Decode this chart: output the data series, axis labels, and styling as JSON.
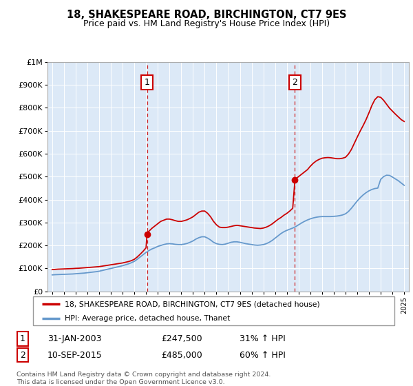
{
  "title": "18, SHAKESPEARE ROAD, BIRCHINGTON, CT7 9ES",
  "subtitle": "Price paid vs. HM Land Registry's House Price Index (HPI)",
  "plot_bg_color": "#dce9f7",
  "ylim": [
    0,
    1000000
  ],
  "yticks": [
    0,
    100000,
    200000,
    300000,
    400000,
    500000,
    600000,
    700000,
    800000,
    900000,
    1000000
  ],
  "ytick_labels": [
    "£0",
    "£100K",
    "£200K",
    "£300K",
    "£400K",
    "£500K",
    "£600K",
    "£700K",
    "£800K",
    "£900K",
    "£1M"
  ],
  "red_line_color": "#cc0000",
  "blue_line_color": "#6699cc",
  "marker1_year": 2003.08,
  "marker1_value": 247500,
  "marker2_year": 2015.69,
  "marker2_value": 485000,
  "legend_line1": "18, SHAKESPEARE ROAD, BIRCHINGTON, CT7 9ES (detached house)",
  "legend_line2": "HPI: Average price, detached house, Thanet",
  "table_row1": [
    "1",
    "31-JAN-2003",
    "£247,500",
    "31% ↑ HPI"
  ],
  "table_row2": [
    "2",
    "10-SEP-2015",
    "£485,000",
    "60% ↑ HPI"
  ],
  "footnote1": "Contains HM Land Registry data © Crown copyright and database right 2024.",
  "footnote2": "This data is licensed under the Open Government Licence v3.0.",
  "red_hpi_data": [
    [
      1995.0,
      95000
    ],
    [
      1995.25,
      96000
    ],
    [
      1995.5,
      97000
    ],
    [
      1995.75,
      97500
    ],
    [
      1996.0,
      98000
    ],
    [
      1996.25,
      98500
    ],
    [
      1996.5,
      99000
    ],
    [
      1996.75,
      99500
    ],
    [
      1997.0,
      100500
    ],
    [
      1997.25,
      101000
    ],
    [
      1997.5,
      102000
    ],
    [
      1997.75,
      103000
    ],
    [
      1998.0,
      104000
    ],
    [
      1998.25,
      105000
    ],
    [
      1998.5,
      106000
    ],
    [
      1998.75,
      107000
    ],
    [
      1999.0,
      108000
    ],
    [
      1999.25,
      110000
    ],
    [
      1999.5,
      112000
    ],
    [
      1999.75,
      114000
    ],
    [
      2000.0,
      116000
    ],
    [
      2000.25,
      118000
    ],
    [
      2000.5,
      120000
    ],
    [
      2000.75,
      122000
    ],
    [
      2001.0,
      124000
    ],
    [
      2001.25,
      127000
    ],
    [
      2001.5,
      130000
    ],
    [
      2001.75,
      134000
    ],
    [
      2002.0,
      140000
    ],
    [
      2002.25,
      150000
    ],
    [
      2002.5,
      162000
    ],
    [
      2002.75,
      175000
    ],
    [
      2003.0,
      190000
    ],
    [
      2003.08,
      247500
    ],
    [
      2003.2,
      260000
    ],
    [
      2003.5,
      275000
    ],
    [
      2003.75,
      285000
    ],
    [
      2004.0,
      295000
    ],
    [
      2004.25,
      305000
    ],
    [
      2004.5,
      310000
    ],
    [
      2004.75,
      315000
    ],
    [
      2005.0,
      315000
    ],
    [
      2005.25,
      312000
    ],
    [
      2005.5,
      308000
    ],
    [
      2005.75,
      305000
    ],
    [
      2006.0,
      305000
    ],
    [
      2006.25,
      308000
    ],
    [
      2006.5,
      312000
    ],
    [
      2006.75,
      318000
    ],
    [
      2007.0,
      325000
    ],
    [
      2007.25,
      335000
    ],
    [
      2007.5,
      345000
    ],
    [
      2007.75,
      350000
    ],
    [
      2008.0,
      350000
    ],
    [
      2008.25,
      340000
    ],
    [
      2008.5,
      325000
    ],
    [
      2008.75,
      305000
    ],
    [
      2009.0,
      290000
    ],
    [
      2009.25,
      280000
    ],
    [
      2009.5,
      278000
    ],
    [
      2009.75,
      278000
    ],
    [
      2010.0,
      280000
    ],
    [
      2010.25,
      283000
    ],
    [
      2010.5,
      286000
    ],
    [
      2010.75,
      288000
    ],
    [
      2011.0,
      286000
    ],
    [
      2011.25,
      284000
    ],
    [
      2011.5,
      282000
    ],
    [
      2011.75,
      280000
    ],
    [
      2012.0,
      278000
    ],
    [
      2012.25,
      276000
    ],
    [
      2012.5,
      275000
    ],
    [
      2012.75,
      274000
    ],
    [
      2013.0,
      276000
    ],
    [
      2013.25,
      280000
    ],
    [
      2013.5,
      286000
    ],
    [
      2013.75,
      294000
    ],
    [
      2014.0,
      304000
    ],
    [
      2014.25,
      314000
    ],
    [
      2014.5,
      322000
    ],
    [
      2014.75,
      332000
    ],
    [
      2015.0,
      340000
    ],
    [
      2015.25,
      350000
    ],
    [
      2015.5,
      362000
    ],
    [
      2015.69,
      485000
    ],
    [
      2015.75,
      490000
    ],
    [
      2016.0,
      500000
    ],
    [
      2016.25,
      510000
    ],
    [
      2016.5,
      520000
    ],
    [
      2016.75,
      530000
    ],
    [
      2017.0,
      545000
    ],
    [
      2017.25,
      558000
    ],
    [
      2017.5,
      568000
    ],
    [
      2017.75,
      575000
    ],
    [
      2018.0,
      580000
    ],
    [
      2018.25,
      582000
    ],
    [
      2018.5,
      583000
    ],
    [
      2018.75,
      582000
    ],
    [
      2019.0,
      580000
    ],
    [
      2019.25,
      578000
    ],
    [
      2019.5,
      578000
    ],
    [
      2019.75,
      580000
    ],
    [
      2020.0,
      584000
    ],
    [
      2020.25,
      598000
    ],
    [
      2020.5,
      618000
    ],
    [
      2020.75,
      645000
    ],
    [
      2021.0,
      672000
    ],
    [
      2021.25,
      698000
    ],
    [
      2021.5,
      722000
    ],
    [
      2021.75,
      748000
    ],
    [
      2022.0,
      778000
    ],
    [
      2022.25,
      810000
    ],
    [
      2022.5,
      835000
    ],
    [
      2022.75,
      848000
    ],
    [
      2023.0,
      845000
    ],
    [
      2023.25,
      832000
    ],
    [
      2023.5,
      815000
    ],
    [
      2023.75,
      798000
    ],
    [
      2024.0,
      785000
    ],
    [
      2024.25,
      772000
    ],
    [
      2024.5,
      760000
    ],
    [
      2024.75,
      748000
    ],
    [
      2025.0,
      740000
    ]
  ],
  "blue_hpi_data": [
    [
      1995.0,
      72000
    ],
    [
      1995.25,
      73000
    ],
    [
      1995.5,
      73500
    ],
    [
      1995.75,
      74000
    ],
    [
      1996.0,
      74500
    ],
    [
      1996.25,
      75000
    ],
    [
      1996.5,
      75500
    ],
    [
      1996.75,
      76000
    ],
    [
      1997.0,
      77000
    ],
    [
      1997.25,
      78000
    ],
    [
      1997.5,
      79000
    ],
    [
      1997.75,
      80000
    ],
    [
      1998.0,
      81500
    ],
    [
      1998.25,
      83000
    ],
    [
      1998.5,
      84500
    ],
    [
      1998.75,
      86000
    ],
    [
      1999.0,
      88000
    ],
    [
      1999.25,
      91000
    ],
    [
      1999.5,
      94000
    ],
    [
      1999.75,
      97000
    ],
    [
      2000.0,
      100000
    ],
    [
      2000.25,
      103000
    ],
    [
      2000.5,
      106000
    ],
    [
      2000.75,
      109000
    ],
    [
      2001.0,
      112000
    ],
    [
      2001.25,
      116000
    ],
    [
      2001.5,
      120000
    ],
    [
      2001.75,
      125000
    ],
    [
      2002.0,
      131000
    ],
    [
      2002.25,
      140000
    ],
    [
      2002.5,
      150000
    ],
    [
      2002.75,
      160000
    ],
    [
      2003.0,
      170000
    ],
    [
      2003.25,
      178000
    ],
    [
      2003.5,
      185000
    ],
    [
      2003.75,
      190000
    ],
    [
      2004.0,
      196000
    ],
    [
      2004.25,
      200000
    ],
    [
      2004.5,
      204000
    ],
    [
      2004.75,
      207000
    ],
    [
      2005.0,
      208000
    ],
    [
      2005.25,
      207000
    ],
    [
      2005.5,
      205000
    ],
    [
      2005.75,
      204000
    ],
    [
      2006.0,
      204000
    ],
    [
      2006.25,
      206000
    ],
    [
      2006.5,
      209000
    ],
    [
      2006.75,
      214000
    ],
    [
      2007.0,
      220000
    ],
    [
      2007.25,
      228000
    ],
    [
      2007.5,
      234000
    ],
    [
      2007.75,
      238000
    ],
    [
      2008.0,
      238000
    ],
    [
      2008.25,
      232000
    ],
    [
      2008.5,
      224000
    ],
    [
      2008.75,
      214000
    ],
    [
      2009.0,
      208000
    ],
    [
      2009.25,
      205000
    ],
    [
      2009.5,
      204000
    ],
    [
      2009.75,
      206000
    ],
    [
      2010.0,
      210000
    ],
    [
      2010.25,
      214000
    ],
    [
      2010.5,
      216000
    ],
    [
      2010.75,
      216000
    ],
    [
      2011.0,
      214000
    ],
    [
      2011.25,
      211000
    ],
    [
      2011.5,
      208000
    ],
    [
      2011.75,
      206000
    ],
    [
      2012.0,
      204000
    ],
    [
      2012.25,
      202000
    ],
    [
      2012.5,
      201000
    ],
    [
      2012.75,
      202000
    ],
    [
      2013.0,
      204000
    ],
    [
      2013.25,
      208000
    ],
    [
      2013.5,
      214000
    ],
    [
      2013.75,
      222000
    ],
    [
      2014.0,
      232000
    ],
    [
      2014.25,
      242000
    ],
    [
      2014.5,
      252000
    ],
    [
      2014.75,
      260000
    ],
    [
      2015.0,
      266000
    ],
    [
      2015.25,
      271000
    ],
    [
      2015.5,
      276000
    ],
    [
      2015.75,
      282000
    ],
    [
      2016.0,
      290000
    ],
    [
      2016.25,
      298000
    ],
    [
      2016.5,
      305000
    ],
    [
      2016.75,
      311000
    ],
    [
      2017.0,
      316000
    ],
    [
      2017.25,
      320000
    ],
    [
      2017.5,
      323000
    ],
    [
      2017.75,
      325000
    ],
    [
      2018.0,
      326000
    ],
    [
      2018.25,
      326000
    ],
    [
      2018.5,
      326000
    ],
    [
      2018.75,
      326000
    ],
    [
      2019.0,
      327000
    ],
    [
      2019.25,
      328000
    ],
    [
      2019.5,
      330000
    ],
    [
      2019.75,
      333000
    ],
    [
      2020.0,
      338000
    ],
    [
      2020.25,
      348000
    ],
    [
      2020.5,
      362000
    ],
    [
      2020.75,
      378000
    ],
    [
      2021.0,
      394000
    ],
    [
      2021.25,
      408000
    ],
    [
      2021.5,
      420000
    ],
    [
      2021.75,
      430000
    ],
    [
      2022.0,
      438000
    ],
    [
      2022.25,
      444000
    ],
    [
      2022.5,
      448000
    ],
    [
      2022.75,
      450000
    ],
    [
      2023.0,
      488000
    ],
    [
      2023.25,
      500000
    ],
    [
      2023.5,
      506000
    ],
    [
      2023.75,
      505000
    ],
    [
      2024.0,
      498000
    ],
    [
      2024.25,
      490000
    ],
    [
      2024.5,
      482000
    ],
    [
      2024.75,
      472000
    ],
    [
      2025.0,
      462000
    ]
  ]
}
